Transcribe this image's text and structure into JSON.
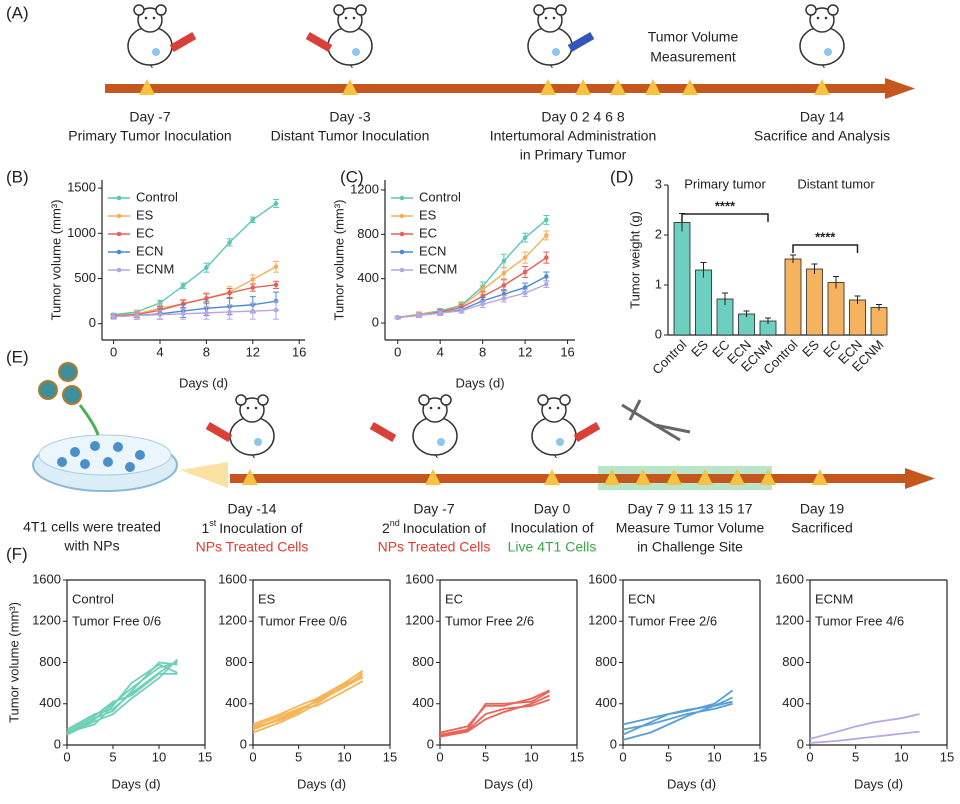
{
  "panel_labels": [
    "(A)",
    "(B)",
    "(C)",
    "(D)",
    "(E)",
    "(F)"
  ],
  "timeline_a": {
    "tumor_volume": [
      "Tumor Volume",
      "Measurement"
    ],
    "step1": [
      "Day -7",
      "Primary Tumor Inoculation"
    ],
    "step2": [
      "Day -3",
      "Distant Tumor Inoculation"
    ],
    "step3": [
      "Day 0 2 4 6 8",
      "Intertumoral Administration",
      "in Primary Tumor"
    ],
    "step4": [
      "Day 14",
      "Sacrifice and Analysis"
    ]
  },
  "timeline_e": {
    "cells": [
      "4T1 cells were treated",
      "with NPs"
    ],
    "step1": {
      "day": "Day -14",
      "ordinal": "1",
      "suffix": "st",
      "text": "Inoculation of",
      "cells": "NPs Treated Cells"
    },
    "step2": {
      "day": "Day -7",
      "ordinal": "2",
      "suffix": "nd",
      "text": "Inoculation of",
      "cells": "NPs Treated Cells"
    },
    "step3": {
      "day": "Day 0",
      "text": "Inoculation of",
      "cells": "Live 4T1 Cells"
    },
    "step4": [
      "Day 7 9 11 13 15 17",
      "Measure Tumor Volume",
      "in Challenge Site"
    ],
    "step5": [
      "Day 19",
      "Sacrificed"
    ]
  },
  "chart_data": [
    {
      "type": "line",
      "xlabel": "Days (d)",
      "ylabel": "Tumor volume (mm³)",
      "x": [
        0,
        2,
        4,
        6,
        8,
        10,
        12,
        14
      ],
      "xlim": [
        -1,
        16.5
      ],
      "xticks": [
        0,
        4,
        8,
        12,
        16
      ],
      "ylim": [
        -180,
        1590
      ],
      "yticks": [
        0,
        500,
        1000,
        1500
      ],
      "legend": "upper left",
      "markers": true,
      "series": [
        {
          "name": "Control",
          "color": "#5cc7b5",
          "values": [
            100,
            130,
            230,
            420,
            620,
            900,
            1150,
            1330
          ],
          "errors": [
            15,
            20,
            30,
            30,
            50,
            40,
            30,
            45
          ]
        },
        {
          "name": "ES",
          "color": "#f2b05e",
          "values": [
            90,
            110,
            170,
            220,
            280,
            350,
            490,
            630
          ],
          "errors": [
            20,
            40,
            50,
            50,
            60,
            60,
            50,
            60
          ]
        },
        {
          "name": "EC",
          "color": "#e5605a",
          "values": [
            90,
            100,
            150,
            220,
            280,
            340,
            400,
            430
          ],
          "errors": [
            20,
            30,
            40,
            40,
            50,
            50,
            40,
            40
          ]
        },
        {
          "name": "ECN",
          "color": "#4a8ccf",
          "values": [
            80,
            90,
            110,
            140,
            170,
            190,
            210,
            250
          ],
          "errors": [
            20,
            40,
            60,
            70,
            80,
            90,
            90,
            100
          ]
        },
        {
          "name": "ECNM",
          "color": "#b7a6e0",
          "values": [
            80,
            90,
            100,
            110,
            120,
            130,
            140,
            150
          ],
          "errors": [
            30,
            40,
            50,
            60,
            70,
            80,
            90,
            100
          ]
        }
      ]
    },
    {
      "type": "line",
      "xlabel": "Days (d)",
      "ylabel": "Tumor volume (mm³)",
      "x": [
        0,
        2,
        4,
        6,
        8,
        10,
        12,
        14
      ],
      "xlim": [
        -1.2,
        16.7
      ],
      "xticks": [
        0,
        4,
        8,
        12,
        16
      ],
      "ylim": [
        -153,
        1290
      ],
      "yticks": [
        0,
        400,
        800,
        1200
      ],
      "legend": "upper left",
      "markers": true,
      "series": [
        {
          "name": "Control",
          "color": "#5cc7b5",
          "values": [
            50,
            80,
            110,
            160,
            330,
            560,
            770,
            930
          ],
          "errors": [
            10,
            20,
            20,
            30,
            40,
            60,
            40,
            40
          ]
        },
        {
          "name": "ES",
          "color": "#f2b05e",
          "values": [
            50,
            80,
            100,
            150,
            300,
            450,
            590,
            790
          ],
          "errors": [
            10,
            20,
            20,
            30,
            40,
            50,
            50,
            40
          ]
        },
        {
          "name": "EC",
          "color": "#e5605a",
          "values": [
            50,
            70,
            100,
            140,
            240,
            340,
            460,
            590
          ],
          "errors": [
            10,
            20,
            20,
            30,
            40,
            50,
            50,
            50
          ]
        },
        {
          "name": "ECN",
          "color": "#4a8ccf",
          "values": [
            50,
            70,
            90,
            120,
            200,
            260,
            320,
            420
          ],
          "errors": [
            10,
            20,
            20,
            30,
            30,
            40,
            40,
            40
          ]
        },
        {
          "name": "ECNM",
          "color": "#b7a6e0",
          "values": [
            50,
            70,
            90,
            110,
            170,
            220,
            270,
            350
          ],
          "errors": [
            10,
            20,
            20,
            20,
            30,
            30,
            30,
            30
          ]
        }
      ]
    },
    {
      "type": "bar",
      "ylabel": "Tumor weight (g)",
      "categories": [
        "Control",
        "ES",
        "EC",
        "ECN",
        "ECNM"
      ],
      "ylim": [
        0,
        3
      ],
      "yticks": [
        0,
        1,
        2,
        3
      ],
      "annotations": [
        "****",
        "****"
      ],
      "series": [
        {
          "name": "Primary tumor",
          "color": "#6ccfbf",
          "values": [
            2.25,
            1.3,
            0.72,
            0.42,
            0.28
          ],
          "errors": [
            0.18,
            0.15,
            0.12,
            0.06,
            0.06
          ]
        },
        {
          "name": "Distant tumor",
          "color": "#f6b35f",
          "values": [
            1.52,
            1.32,
            1.05,
            0.7,
            0.55
          ],
          "errors": [
            0.08,
            0.1,
            0.12,
            0.08,
            0.06
          ]
        }
      ]
    },
    {
      "type": "line",
      "xlabel": "Days (d)",
      "ylabel": "Tumor volume (mm³)",
      "annotations": [
        "Control",
        "Tumor Free 0/6"
      ],
      "box": true,
      "x": [
        0,
        3,
        5,
        7,
        10,
        12
      ],
      "xlim": [
        0,
        15
      ],
      "xticks": [
        0,
        5,
        10,
        15
      ],
      "ylim": [
        0,
        1600
      ],
      "yticks": [
        0,
        400,
        800,
        1200,
        1600
      ],
      "color": "#6fcfb8",
      "series": [
        {
          "values": [
            100,
            250,
            400,
            550,
            750,
            800
          ]
        },
        {
          "values": [
            150,
            300,
            350,
            500,
            700,
            820
          ]
        },
        {
          "values": [
            120,
            200,
            380,
            600,
            780,
            700
          ]
        },
        {
          "values": [
            100,
            230,
            300,
            450,
            650,
            830
          ]
        },
        {
          "values": [
            130,
            280,
            420,
            480,
            690,
            690
          ]
        },
        {
          "values": [
            110,
            260,
            330,
            520,
            800,
            780
          ]
        }
      ]
    },
    {
      "type": "line",
      "xlabel": "Days (d)",
      "annotations": [
        "ES",
        "Tumor Free 0/6"
      ],
      "box": true,
      "x": [
        0,
        3,
        5,
        7,
        10,
        12
      ],
      "xlim": [
        0,
        15
      ],
      "xticks": [
        0,
        5,
        10,
        15
      ],
      "ylim": [
        0,
        1600
      ],
      "yticks": [
        0,
        400,
        800,
        1200,
        1600
      ],
      "color": "#f5b556",
      "series": [
        {
          "values": [
            150,
            250,
            350,
            420,
            560,
            700
          ]
        },
        {
          "values": [
            200,
            300,
            380,
            450,
            600,
            650
          ]
        },
        {
          "values": [
            120,
            220,
            300,
            400,
            580,
            680
          ]
        },
        {
          "values": [
            180,
            280,
            350,
            380,
            520,
            620
          ]
        },
        {
          "values": [
            150,
            260,
            330,
            430,
            600,
            720
          ]
        },
        {
          "values": [
            170,
            240,
            320,
            440,
            560,
            660
          ]
        }
      ]
    },
    {
      "type": "line",
      "xlabel": "Days (d)",
      "annotations": [
        "EC",
        "Tumor Free 2/6"
      ],
      "box": true,
      "x": [
        0,
        3,
        5,
        7,
        10,
        12
      ],
      "xlim": [
        0,
        15
      ],
      "xticks": [
        0,
        5,
        10,
        15
      ],
      "ylim": [
        0,
        1600
      ],
      "yticks": [
        0,
        400,
        800,
        1200,
        1600
      ],
      "color": "#e9655a",
      "series": [
        {
          "values": [
            100,
            150,
            400,
            400,
            420,
            520
          ]
        },
        {
          "values": [
            80,
            130,
            250,
            320,
            400,
            480
          ]
        },
        {
          "values": [
            120,
            180,
            380,
            380,
            450,
            530
          ]
        },
        {
          "values": [
            90,
            140,
            300,
            350,
            380,
            440
          ]
        }
      ]
    },
    {
      "type": "line",
      "xlabel": "Days (d)",
      "annotations": [
        "ECN",
        "Tumor Free 2/6"
      ],
      "box": true,
      "x": [
        0,
        3,
        5,
        7,
        10,
        12
      ],
      "xlim": [
        0,
        15
      ],
      "xticks": [
        0,
        5,
        10,
        15
      ],
      "ylim": [
        0,
        1600
      ],
      "yticks": [
        0,
        400,
        800,
        1200,
        1600
      ],
      "color": "#5a9fd4",
      "series": [
        {
          "values": [
            100,
            220,
            300,
            330,
            400,
            530
          ]
        },
        {
          "values": [
            200,
            260,
            300,
            340,
            380,
            420
          ]
        },
        {
          "values": [
            150,
            200,
            250,
            300,
            350,
            400
          ]
        },
        {
          "values": [
            50,
            120,
            200,
            280,
            380,
            460
          ]
        }
      ]
    },
    {
      "type": "line",
      "xlabel": "Days (d)",
      "annotations": [
        "ECNM",
        "Tumor Free 4/6"
      ],
      "box": true,
      "x": [
        0,
        3,
        5,
        7,
        10,
        12
      ],
      "xlim": [
        0,
        15
      ],
      "xticks": [
        0,
        5,
        10,
        15
      ],
      "ylim": [
        0,
        1600
      ],
      "yticks": [
        0,
        400,
        800,
        1200,
        1600
      ],
      "color": "#b9a7e3",
      "series": [
        {
          "values": [
            60,
            130,
            180,
            220,
            260,
            300
          ]
        },
        {
          "values": [
            20,
            40,
            60,
            80,
            110,
            130
          ]
        }
      ]
    }
  ]
}
